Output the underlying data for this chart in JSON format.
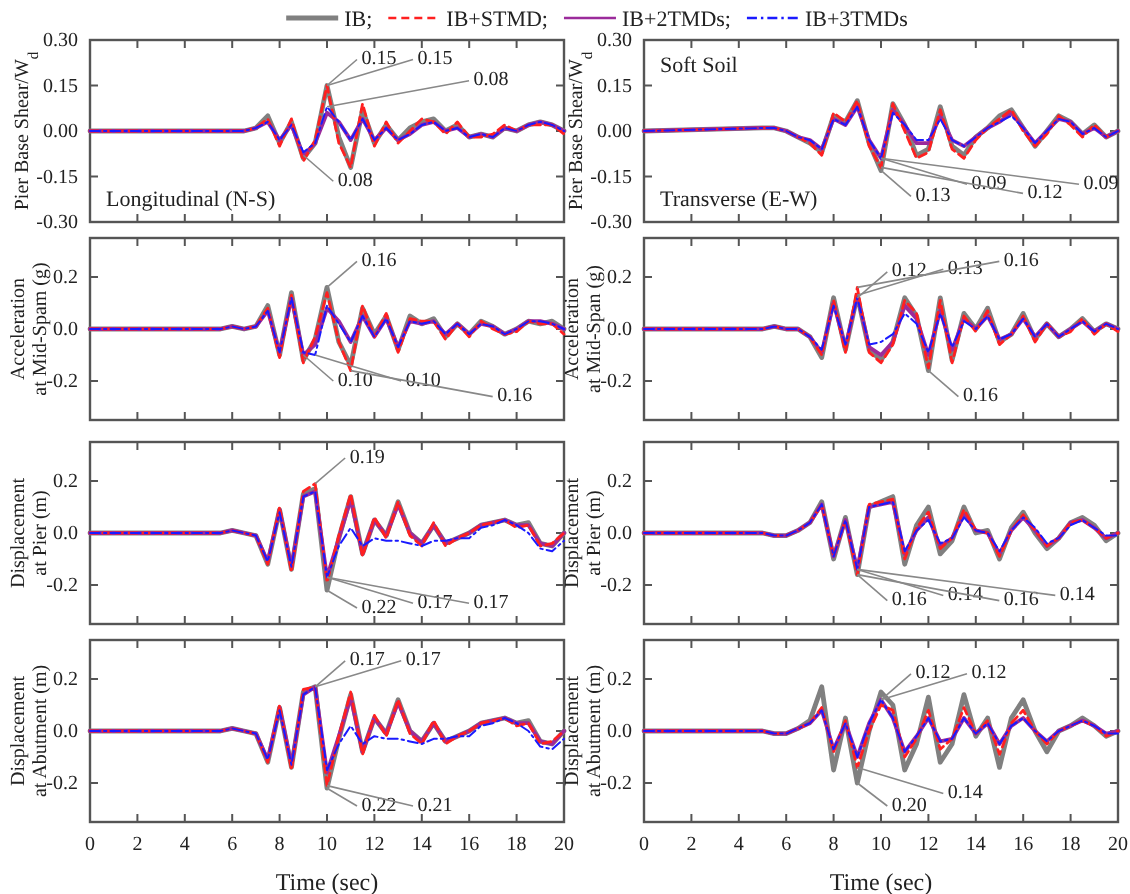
{
  "chart_data": [
    {
      "type": "line",
      "ylabel": "Pier Base Shear/W$_{d}$",
      "legend": "top",
      "tick_labels": "y",
      "xlim": [
        0,
        20
      ],
      "xticks": [
        0,
        2,
        4,
        6,
        8,
        10,
        12,
        14,
        16,
        18,
        20
      ],
      "ylim": [
        -0.3,
        0.3
      ],
      "yticks": [
        {
          "value": -0.3,
          "label": "-0.30"
        },
        {
          "value": -0.15,
          "label": "-0.15"
        },
        {
          "value": 0,
          "label": "0.00"
        },
        {
          "value": 0.15,
          "label": "0.15"
        },
        {
          "value": 0.3,
          "label": "0.30"
        }
      ],
      "x": [
        0,
        5,
        5.5,
        6,
        6.5,
        7,
        7.5,
        8,
        8.5,
        9,
        9.5,
        10,
        10.5,
        11,
        11.5,
        12,
        12.5,
        13,
        13.5,
        14,
        14.5,
        15,
        15.5,
        16,
        16.5,
        17,
        17.5,
        18,
        18.5,
        19,
        19.5,
        20
      ],
      "annotations": [
        "Longitudinal (N-S)",
        {
          "text": "0.15",
          "x": 10,
          "y": 0.15
        },
        {
          "text": "0.15",
          "x": 10,
          "y": 0.15
        },
        {
          "text": "0.08",
          "x": 9,
          "y": -0.08
        },
        {
          "text": "0.08",
          "x": 10,
          "y": 0.08
        }
      ],
      "series": [
        {
          "name": "IB;",
          "color": "#808080",
          "line_style": "solid",
          "values": [
            0,
            0,
            0,
            0,
            0,
            0.01,
            0.05,
            -0.04,
            0.03,
            -0.09,
            -0.04,
            0.15,
            -0.02,
            -0.12,
            0.07,
            -0.04,
            0.02,
            -0.03,
            0.01,
            0.03,
            0.04,
            0.0,
            0.02,
            -0.02,
            -0.01,
            -0.02,
            0.01,
            0.0,
            0.02,
            0.03,
            0.02,
            0.0
          ]
        },
        {
          "name": "IB+STMD;",
          "color": "#ff2020",
          "line_style": "dashed",
          "values": [
            0,
            0,
            0,
            0,
            0,
            0.01,
            0.04,
            -0.05,
            0.04,
            -0.1,
            -0.03,
            0.15,
            -0.04,
            -0.12,
            0.09,
            -0.05,
            0.03,
            -0.04,
            0.0,
            0.04,
            0.03,
            -0.01,
            0.03,
            -0.02,
            -0.02,
            -0.01,
            0.02,
            0.0,
            0.02,
            0.02,
            0.02,
            -0.01
          ]
        },
        {
          "name": "IB+2TMDs;",
          "color": "#9b2b9b",
          "line_style": "solid",
          "values": [
            0,
            0,
            0,
            0,
            0,
            0.01,
            0.03,
            -0.03,
            0.02,
            -0.08,
            -0.04,
            0.06,
            0.03,
            -0.03,
            0.04,
            -0.03,
            0.01,
            -0.03,
            -0.01,
            0.02,
            0.03,
            0.0,
            0.01,
            -0.02,
            -0.01,
            -0.02,
            0.01,
            0.0,
            0.02,
            0.03,
            0.02,
            0.0
          ]
        },
        {
          "name": "IB+3TMDs",
          "color": "#1a1aff",
          "line_style": "dotted",
          "values": [
            0,
            0,
            0,
            0,
            0,
            0.01,
            0.03,
            -0.03,
            0.02,
            -0.07,
            -0.04,
            0.08,
            0.03,
            -0.03,
            0.04,
            -0.03,
            0.01,
            -0.03,
            -0.01,
            0.02,
            0.03,
            0.0,
            0.01,
            -0.02,
            -0.01,
            -0.02,
            0.01,
            0.0,
            0.02,
            0.03,
            0.02,
            0.0
          ]
        }
      ]
    },
    {
      "type": "line",
      "ylabel": "Pier Base Shear/W$_{d}$",
      "tick_labels": "y",
      "xlim": [
        0,
        20
      ],
      "xticks": [
        0,
        2,
        4,
        6,
        8,
        10,
        12,
        14,
        16,
        18,
        20
      ],
      "ylim": [
        -0.3,
        0.3
      ],
      "yticks": [
        {
          "value": -0.3,
          "label": "-0.30"
        },
        {
          "value": -0.15,
          "label": "-0.15"
        },
        {
          "value": 0,
          "label": "0.00"
        },
        {
          "value": 0.15,
          "label": "0.15"
        },
        {
          "value": 0.3,
          "label": "0.30"
        }
      ],
      "x": [
        0,
        5,
        5.5,
        6,
        6.5,
        7,
        7.5,
        8,
        8.5,
        9,
        9.5,
        10,
        10.5,
        11,
        11.5,
        12,
        12.5,
        13,
        13.5,
        14,
        14.5,
        15,
        15.5,
        16,
        16.5,
        17,
        17.5,
        18,
        18.5,
        19,
        19.5,
        20
      ],
      "annotations": [
        "Soft Soil",
        "Transverse (E-W)",
        {
          "text": "0.13",
          "x": 10,
          "y": -0.13
        },
        {
          "text": "0.09",
          "x": 10,
          "y": -0.09
        },
        {
          "text": "0.12",
          "x": 10,
          "y": -0.12
        },
        {
          "text": "0.09",
          "x": 10,
          "y": -0.09
        }
      ],
      "series": [
        {
          "color": "#808080",
          "line_style": "solid",
          "values": [
            0,
            0.01,
            0.01,
            0.0,
            -0.02,
            -0.04,
            -0.07,
            0.05,
            0.03,
            0.1,
            -0.04,
            -0.13,
            0.09,
            0.02,
            -0.08,
            -0.06,
            0.08,
            -0.05,
            -0.08,
            -0.02,
            0.01,
            0.05,
            0.07,
            0.01,
            -0.05,
            0.0,
            0.05,
            0.03,
            -0.01,
            0.02,
            -0.02,
            0.0
          ]
        },
        {
          "color": "#ff2020",
          "line_style": "dashed",
          "values": [
            0,
            0.01,
            0.01,
            0.0,
            -0.02,
            -0.04,
            -0.08,
            0.06,
            0.03,
            0.1,
            -0.05,
            -0.12,
            0.09,
            0.0,
            -0.09,
            -0.07,
            0.07,
            -0.06,
            -0.09,
            -0.03,
            0.01,
            0.04,
            0.07,
            0.0,
            -0.05,
            -0.01,
            0.05,
            0.02,
            -0.02,
            0.02,
            -0.02,
            0.0
          ]
        },
        {
          "color": "#9b2b9b",
          "line_style": "solid",
          "values": [
            0,
            0.01,
            0.01,
            0.0,
            -0.02,
            -0.03,
            -0.06,
            0.04,
            0.02,
            0.08,
            -0.03,
            -0.09,
            0.07,
            0.02,
            -0.04,
            -0.04,
            0.05,
            -0.03,
            -0.05,
            -0.02,
            0.01,
            0.03,
            0.06,
            0.01,
            -0.04,
            0.0,
            0.04,
            0.03,
            -0.01,
            0.01,
            -0.02,
            0.0
          ]
        },
        {
          "color": "#1a1aff",
          "line_style": "dotted",
          "values": [
            0,
            0.01,
            0.01,
            0.0,
            -0.02,
            -0.03,
            -0.06,
            0.04,
            0.02,
            0.08,
            -0.03,
            -0.09,
            0.06,
            0.02,
            -0.03,
            -0.03,
            0.04,
            -0.03,
            -0.05,
            -0.02,
            0.01,
            0.03,
            0.05,
            0.01,
            -0.04,
            0.0,
            0.04,
            0.03,
            -0.01,
            0.01,
            -0.02,
            0.0
          ]
        }
      ]
    },
    {
      "type": "line",
      "ylabel": "Acceleration\nat Mid-Spam (g)",
      "tick_labels": "y",
      "xlim": [
        0,
        20
      ],
      "xticks": [
        0,
        2,
        4,
        6,
        8,
        10,
        12,
        14,
        16,
        18,
        20
      ],
      "ylim": [
        -0.35,
        0.35
      ],
      "yticks": [
        {
          "value": -0.2,
          "label": "-0.2"
        },
        {
          "value": 0,
          "label": "0.0"
        },
        {
          "value": 0.2,
          "label": "0.2"
        }
      ],
      "x": [
        0,
        5,
        5.5,
        6,
        6.5,
        7,
        7.5,
        8,
        8.5,
        9,
        9.5,
        10,
        10.5,
        11,
        11.5,
        12,
        12.5,
        13,
        13.5,
        14,
        14.5,
        15,
        15.5,
        16,
        16.5,
        17,
        17.5,
        18,
        18.5,
        19,
        19.5,
        20
      ],
      "annotations": [
        {
          "text": "0.16",
          "x": 10,
          "y": 0.16
        },
        {
          "text": "0.10",
          "x": 9,
          "y": -0.1
        },
        {
          "text": "0.10",
          "x": 9.5,
          "y": -0.1
        },
        {
          "text": "0.16",
          "x": 11,
          "y": -0.16
        }
      ],
      "series": [
        {
          "color": "#808080",
          "line_style": "solid",
          "values": [
            0,
            0,
            0,
            0.01,
            0,
            0.01,
            0.09,
            -0.1,
            0.14,
            -0.12,
            -0.04,
            0.16,
            -0.05,
            -0.14,
            0.08,
            -0.02,
            0.05,
            -0.08,
            0.05,
            0.02,
            0.04,
            -0.03,
            0.02,
            -0.02,
            0.03,
            0.01,
            -0.02,
            0.0,
            0.03,
            0.02,
            0.03,
            0.0
          ]
        },
        {
          "color": "#ff2020",
          "line_style": "dashed",
          "values": [
            0,
            0,
            0,
            0.01,
            0,
            0.01,
            0.08,
            -0.11,
            0.13,
            -0.13,
            -0.03,
            0.14,
            -0.05,
            -0.16,
            0.09,
            -0.03,
            0.06,
            -0.09,
            0.04,
            0.03,
            0.03,
            -0.04,
            0.02,
            -0.03,
            0.03,
            0.0,
            -0.02,
            -0.01,
            0.03,
            0.02,
            0.02,
            -0.02
          ]
        },
        {
          "color": "#9b2b9b",
          "line_style": "solid",
          "values": [
            0,
            0,
            0,
            0.01,
            0,
            0.01,
            0.07,
            -0.09,
            0.12,
            -0.1,
            -0.06,
            0.08,
            0.03,
            -0.05,
            0.05,
            -0.03,
            0.04,
            -0.07,
            0.03,
            0.02,
            0.03,
            -0.02,
            0.02,
            -0.02,
            0.02,
            0.01,
            -0.02,
            0.0,
            0.03,
            0.03,
            0.02,
            0.0
          ]
        },
        {
          "color": "#1a1aff",
          "line_style": "dotted",
          "values": [
            0,
            0,
            0,
            0.01,
            0,
            0.01,
            0.07,
            -0.09,
            0.12,
            -0.09,
            -0.1,
            0.09,
            0.02,
            -0.05,
            0.05,
            -0.03,
            0.04,
            -0.07,
            0.03,
            0.02,
            0.03,
            -0.02,
            0.02,
            -0.02,
            0.02,
            0.01,
            -0.02,
            0.0,
            0.03,
            0.03,
            0.02,
            0.0
          ]
        }
      ]
    },
    {
      "type": "line",
      "ylabel": "Acceleration\nat Mid-Span  (g)",
      "tick_labels": "y",
      "xlim": [
        0,
        20
      ],
      "xticks": [
        0,
        2,
        4,
        6,
        8,
        10,
        12,
        14,
        16,
        18,
        20
      ],
      "ylim": [
        -0.35,
        0.35
      ],
      "yticks": [
        {
          "value": -0.2,
          "label": "-0.2"
        },
        {
          "value": 0,
          "label": "0.0"
        },
        {
          "value": 0.2,
          "label": "0.2"
        }
      ],
      "x": [
        0,
        5,
        5.5,
        6,
        6.5,
        7,
        7.5,
        8,
        8.5,
        9,
        9.5,
        10,
        10.5,
        11,
        11.5,
        12,
        12.5,
        13,
        13.5,
        14,
        14.5,
        15,
        15.5,
        16,
        16.5,
        17,
        17.5,
        18,
        18.5,
        19,
        19.5,
        20
      ],
      "annotations": [
        {
          "text": "0.12",
          "x": 9,
          "y": 0.12
        },
        {
          "text": "0.13",
          "x": 9,
          "y": 0.13
        },
        {
          "text": "0.16",
          "x": 12,
          "y": -0.16
        },
        {
          "text": "0.16",
          "x": 9,
          "y": 0.16
        }
      ],
      "series": [
        {
          "color": "#808080",
          "line_style": "solid",
          "values": [
            0,
            0.0,
            0.01,
            0.0,
            0.0,
            -0.03,
            -0.11,
            0.12,
            -0.08,
            0.13,
            -0.08,
            -0.12,
            -0.05,
            0.12,
            0.05,
            -0.16,
            0.12,
            -0.12,
            0.06,
            0.0,
            0.08,
            -0.05,
            -0.02,
            0.06,
            -0.04,
            0.02,
            -0.03,
            0.0,
            0.04,
            -0.01,
            0.02,
            0.0
          ]
        },
        {
          "color": "#ff2020",
          "line_style": "dashed",
          "values": [
            0,
            0.0,
            0.01,
            0.0,
            0.0,
            -0.03,
            -0.1,
            0.11,
            -0.09,
            0.16,
            -0.09,
            -0.13,
            -0.06,
            0.11,
            0.06,
            -0.15,
            0.11,
            -0.13,
            0.05,
            -0.01,
            0.07,
            -0.06,
            -0.02,
            0.05,
            -0.05,
            0.02,
            -0.03,
            -0.01,
            0.04,
            -0.02,
            0.02,
            -0.01
          ]
        },
        {
          "color": "#9b2b9b",
          "line_style": "solid",
          "values": [
            0,
            0.0,
            0.01,
            0.0,
            0.0,
            -0.03,
            -0.09,
            0.1,
            -0.07,
            0.13,
            -0.07,
            -0.1,
            -0.05,
            0.09,
            0.04,
            -0.1,
            0.07,
            -0.08,
            0.04,
            0.0,
            0.05,
            -0.04,
            -0.02,
            0.04,
            -0.03,
            0.02,
            -0.03,
            0.0,
            0.03,
            -0.01,
            0.02,
            0.0
          ]
        },
        {
          "color": "#1a1aff",
          "line_style": "dotted",
          "values": [
            0,
            0.0,
            0.01,
            0.0,
            0.0,
            -0.03,
            -0.08,
            0.09,
            -0.06,
            0.12,
            -0.06,
            -0.05,
            -0.02,
            0.06,
            0.02,
            -0.09,
            0.06,
            -0.07,
            0.03,
            0.0,
            0.05,
            -0.04,
            -0.02,
            0.04,
            -0.03,
            0.02,
            -0.03,
            0.0,
            0.03,
            -0.01,
            0.02,
            0.0
          ]
        }
      ]
    },
    {
      "type": "line",
      "ylabel": "Displacement\nat Pier (m)",
      "tick_labels": "y",
      "xlim": [
        0,
        20
      ],
      "xticks": [
        0,
        2,
        4,
        6,
        8,
        10,
        12,
        14,
        16,
        18,
        20
      ],
      "ylim": [
        -0.35,
        0.35
      ],
      "yticks": [
        {
          "value": -0.2,
          "label": "-0.2"
        },
        {
          "value": 0,
          "label": "0.0"
        },
        {
          "value": 0.2,
          "label": "0.2"
        }
      ],
      "x": [
        0,
        5,
        5.5,
        6,
        6.5,
        7,
        7.5,
        8,
        8.5,
        9,
        9.5,
        10,
        10.5,
        11,
        11.5,
        12,
        12.5,
        13,
        13.5,
        14,
        14.5,
        15,
        15.5,
        16,
        16.5,
        17,
        17.5,
        18,
        18.5,
        19,
        19.5,
        20
      ],
      "annotations": [
        {
          "text": "0.19",
          "x": 9.5,
          "y": 0.19
        },
        {
          "text": "0.22",
          "x": 10,
          "y": -0.22
        },
        {
          "text": "0.17",
          "x": 10,
          "y": -0.17
        },
        {
          "text": "0.17",
          "x": 10,
          "y": -0.17
        }
      ],
      "series": [
        {
          "color": "#808080",
          "line_style": "solid",
          "values": [
            0,
            0,
            0,
            0.01,
            0.0,
            -0.01,
            -0.12,
            0.09,
            -0.14,
            0.15,
            0.17,
            -0.22,
            -0.02,
            0.14,
            -0.08,
            0.05,
            -0.01,
            0.12,
            0.0,
            -0.04,
            0.03,
            -0.04,
            -0.02,
            0.0,
            0.03,
            0.04,
            0.05,
            0.03,
            0.04,
            -0.04,
            -0.05,
            0.0
          ]
        },
        {
          "color": "#ff2020",
          "line_style": "dashed",
          "values": [
            0,
            0,
            0,
            0.01,
            0.0,
            -0.01,
            -0.12,
            0.1,
            -0.15,
            0.16,
            0.19,
            -0.19,
            -0.01,
            0.15,
            -0.09,
            0.06,
            -0.02,
            0.12,
            -0.01,
            -0.05,
            0.04,
            -0.05,
            -0.02,
            0.0,
            0.03,
            0.04,
            0.05,
            0.02,
            0.03,
            -0.05,
            -0.04,
            0.0
          ]
        },
        {
          "color": "#9b2b9b",
          "line_style": "solid",
          "values": [
            0,
            0,
            0,
            0.01,
            0.0,
            -0.01,
            -0.11,
            0.09,
            -0.13,
            0.14,
            0.16,
            -0.17,
            -0.02,
            0.13,
            -0.08,
            0.05,
            -0.01,
            0.11,
            0.0,
            -0.04,
            0.03,
            -0.04,
            -0.02,
            0.0,
            0.03,
            0.04,
            0.05,
            0.03,
            0.03,
            -0.04,
            -0.05,
            0.0
          ]
        },
        {
          "color": "#1a1aff",
          "line_style": "dotted",
          "values": [
            0,
            0,
            0,
            0.01,
            0.0,
            -0.01,
            -0.11,
            0.08,
            -0.13,
            0.14,
            0.16,
            -0.17,
            -0.05,
            0.02,
            -0.05,
            -0.02,
            -0.03,
            -0.03,
            -0.04,
            -0.05,
            -0.03,
            -0.03,
            -0.02,
            -0.02,
            0.02,
            0.03,
            0.05,
            0.03,
            0.0,
            -0.06,
            -0.07,
            -0.03
          ]
        }
      ]
    },
    {
      "type": "line",
      "ylabel": "Displacement\nat Pier (m)",
      "tick_labels": "y",
      "xlim": [
        0,
        20
      ],
      "xticks": [
        0,
        2,
        4,
        6,
        8,
        10,
        12,
        14,
        16,
        18,
        20
      ],
      "ylim": [
        -0.35,
        0.35
      ],
      "yticks": [
        {
          "value": -0.2,
          "label": "-0.2"
        },
        {
          "value": 0,
          "label": "0.0"
        },
        {
          "value": 0.2,
          "label": "0.2"
        }
      ],
      "x": [
        0,
        5,
        5.5,
        6,
        6.5,
        7,
        7.5,
        8,
        8.5,
        9,
        9.5,
        10,
        10.5,
        11,
        11.5,
        12,
        12.5,
        13,
        13.5,
        14,
        14.5,
        15,
        15.5,
        16,
        16.5,
        17,
        17.5,
        18,
        18.5,
        19,
        19.5,
        20
      ],
      "annotations": [
        {
          "text": "0.16",
          "x": 9,
          "y": -0.16
        },
        {
          "text": "0.14",
          "x": 9,
          "y": -0.14
        },
        {
          "text": "0.16",
          "x": 9,
          "y": -0.16
        },
        {
          "text": "0.14",
          "x": 9,
          "y": -0.14
        }
      ],
      "series": [
        {
          "color": "#808080",
          "line_style": "solid",
          "values": [
            0,
            0.0,
            -0.01,
            -0.01,
            0.01,
            0.04,
            0.12,
            -0.1,
            0.06,
            -0.16,
            0.1,
            0.12,
            0.14,
            -0.12,
            0.03,
            0.1,
            -0.08,
            -0.03,
            0.1,
            0.0,
            0.01,
            -0.1,
            0.02,
            0.08,
            0.0,
            -0.06,
            -0.02,
            0.04,
            0.06,
            0.03,
            -0.03,
            0.0
          ]
        },
        {
          "color": "#ff2020",
          "line_style": "dashed",
          "values": [
            0,
            0.0,
            -0.01,
            -0.01,
            0.01,
            0.04,
            0.11,
            -0.09,
            0.05,
            -0.16,
            0.11,
            0.12,
            0.13,
            -0.1,
            0.02,
            0.08,
            -0.06,
            -0.02,
            0.09,
            0.01,
            0.0,
            -0.09,
            0.01,
            0.07,
            0.01,
            -0.05,
            -0.02,
            0.04,
            0.05,
            0.02,
            -0.02,
            0.0
          ]
        },
        {
          "color": "#9b2b9b",
          "line_style": "solid",
          "values": [
            0,
            0.0,
            -0.01,
            -0.01,
            0.01,
            0.04,
            0.11,
            -0.09,
            0.05,
            -0.14,
            0.1,
            0.11,
            0.12,
            -0.08,
            0.01,
            0.06,
            -0.05,
            -0.02,
            0.07,
            0.01,
            0.0,
            -0.08,
            0.01,
            0.06,
            0.01,
            -0.05,
            -0.02,
            0.04,
            0.05,
            0.02,
            -0.02,
            0.0
          ]
        },
        {
          "color": "#1a1aff",
          "line_style": "dotted",
          "values": [
            0,
            0.0,
            -0.01,
            -0.01,
            0.01,
            0.04,
            0.11,
            -0.09,
            0.05,
            -0.14,
            0.1,
            0.11,
            0.12,
            -0.07,
            0.01,
            0.05,
            -0.04,
            -0.02,
            0.06,
            0.01,
            0.0,
            -0.07,
            0.01,
            0.06,
            0.02,
            -0.04,
            -0.02,
            0.03,
            0.05,
            0.02,
            -0.01,
            -0.01
          ]
        }
      ]
    },
    {
      "type": "line",
      "ylabel": "Displacement\nat Abutment (m)",
      "xlabel": "Time (sec)",
      "xlim": [
        0,
        20
      ],
      "xticks": [
        0,
        2,
        4,
        6,
        8,
        10,
        12,
        14,
        16,
        18,
        20
      ],
      "ylim": [
        -0.35,
        0.35
      ],
      "yticks": [
        {
          "value": -0.2,
          "label": "-0.2"
        },
        {
          "value": 0,
          "label": "0.0"
        },
        {
          "value": 0.2,
          "label": "0.2"
        }
      ],
      "x": [
        0,
        5,
        5.5,
        6,
        6.5,
        7,
        7.5,
        8,
        8.5,
        9,
        9.5,
        10,
        10.5,
        11,
        11.5,
        12,
        12.5,
        13,
        13.5,
        14,
        14.5,
        15,
        15.5,
        16,
        16.5,
        17,
        17.5,
        18,
        18.5,
        19,
        19.5,
        20
      ],
      "annotations": [
        {
          "text": "0.17",
          "x": 9.5,
          "y": 0.17
        },
        {
          "text": "0.17",
          "x": 9.5,
          "y": 0.17
        },
        {
          "text": "0.22",
          "x": 10,
          "y": -0.22
        },
        {
          "text": "0.21",
          "x": 10,
          "y": -0.21
        }
      ],
      "series": [
        {
          "color": "#808080",
          "line_style": "solid",
          "values": [
            0,
            0,
            0,
            0.01,
            0.0,
            -0.01,
            -0.12,
            0.09,
            -0.14,
            0.15,
            0.17,
            -0.22,
            -0.03,
            0.14,
            -0.08,
            0.05,
            -0.01,
            0.12,
            0.0,
            -0.04,
            0.03,
            -0.04,
            -0.02,
            0.0,
            0.03,
            0.04,
            0.05,
            0.03,
            0.04,
            -0.04,
            -0.05,
            0.0
          ]
        },
        {
          "color": "#ff2020",
          "line_style": "dashed",
          "values": [
            0,
            0,
            0,
            0.01,
            0.0,
            -0.01,
            -0.12,
            0.1,
            -0.15,
            0.16,
            0.17,
            -0.21,
            -0.02,
            0.15,
            -0.09,
            0.06,
            -0.02,
            0.12,
            -0.01,
            -0.05,
            0.04,
            -0.05,
            -0.02,
            0.0,
            0.03,
            0.04,
            0.05,
            0.02,
            0.03,
            -0.05,
            -0.04,
            0.0
          ]
        },
        {
          "color": "#9b2b9b",
          "line_style": "solid",
          "values": [
            0,
            0,
            0,
            0.01,
            0.0,
            -0.01,
            -0.11,
            0.09,
            -0.13,
            0.14,
            0.17,
            -0.16,
            -0.02,
            0.13,
            -0.08,
            0.05,
            -0.01,
            0.11,
            0.0,
            -0.04,
            0.03,
            -0.04,
            -0.02,
            0.0,
            0.03,
            0.04,
            0.05,
            0.03,
            0.03,
            -0.04,
            -0.05,
            0.0
          ]
        },
        {
          "color": "#1a1aff",
          "line_style": "dotted",
          "values": [
            0,
            0,
            0,
            0.01,
            0.0,
            -0.01,
            -0.11,
            0.08,
            -0.13,
            0.14,
            0.17,
            -0.15,
            -0.05,
            0.02,
            -0.05,
            -0.02,
            -0.03,
            -0.03,
            -0.04,
            -0.05,
            -0.03,
            -0.03,
            -0.02,
            -0.02,
            0.02,
            0.03,
            0.05,
            0.03,
            0.0,
            -0.06,
            -0.07,
            -0.03
          ]
        }
      ]
    },
    {
      "type": "line",
      "ylabel": "Displacement\nat Abutment (m)",
      "xlabel": "Time (sec)",
      "xlim": [
        0,
        20
      ],
      "xticks": [
        0,
        2,
        4,
        6,
        8,
        10,
        12,
        14,
        16,
        18,
        20
      ],
      "ylim": [
        -0.35,
        0.35
      ],
      "yticks": [
        {
          "value": -0.2,
          "label": "-0.2"
        },
        {
          "value": 0,
          "label": "0.0"
        },
        {
          "value": 0.2,
          "label": "0.2"
        }
      ],
      "x": [
        0,
        5,
        5.5,
        6,
        6.5,
        7,
        7.5,
        8,
        8.5,
        9,
        9.5,
        10,
        10.5,
        11,
        11.5,
        12,
        12.5,
        13,
        13.5,
        14,
        14.5,
        15,
        15.5,
        16,
        16.5,
        17,
        17.5,
        18,
        18.5,
        19,
        19.5,
        20
      ],
      "annotations": [
        {
          "text": "0.12",
          "x": 10,
          "y": 0.12
        },
        {
          "text": "0.12",
          "x": 10,
          "y": 0.12
        },
        {
          "text": "0.20",
          "x": 9,
          "y": -0.2
        },
        {
          "text": "0.14",
          "x": 9,
          "y": -0.14
        }
      ],
      "series": [
        {
          "color": "#808080",
          "line_style": "solid",
          "values": [
            0,
            0.0,
            -0.01,
            -0.01,
            0.01,
            0.04,
            0.17,
            -0.15,
            0.05,
            -0.2,
            0.0,
            0.15,
            0.1,
            -0.15,
            -0.05,
            0.13,
            -0.12,
            -0.05,
            0.14,
            -0.02,
            0.05,
            -0.14,
            0.05,
            0.12,
            0.0,
            -0.08,
            0.0,
            0.02,
            0.05,
            0.02,
            -0.02,
            0.0
          ]
        },
        {
          "color": "#ff2020",
          "line_style": "dashed",
          "values": [
            0,
            0.0,
            -0.01,
            -0.01,
            0.01,
            0.03,
            0.09,
            -0.08,
            0.04,
            -0.14,
            0.0,
            0.1,
            0.08,
            -0.1,
            -0.03,
            0.08,
            -0.07,
            -0.03,
            0.09,
            -0.01,
            0.04,
            -0.09,
            0.03,
            0.08,
            0.0,
            -0.05,
            0.0,
            0.02,
            0.04,
            0.02,
            -0.02,
            0.0
          ]
        },
        {
          "color": "#9b2b9b",
          "line_style": "solid",
          "values": [
            0,
            0.0,
            -0.01,
            -0.01,
            0.01,
            0.03,
            0.08,
            -0.07,
            0.03,
            -0.1,
            0.03,
            0.12,
            0.05,
            -0.08,
            -0.02,
            0.05,
            -0.04,
            -0.03,
            0.05,
            -0.01,
            0.03,
            -0.05,
            0.02,
            0.05,
            0.0,
            -0.04,
            0.0,
            0.02,
            0.04,
            0.02,
            -0.01,
            0.0
          ]
        },
        {
          "color": "#1a1aff",
          "line_style": "dotted",
          "values": [
            0,
            0.0,
            -0.01,
            -0.01,
            0.01,
            0.03,
            0.08,
            -0.07,
            0.03,
            -0.1,
            0.03,
            0.12,
            0.05,
            -0.08,
            -0.02,
            0.05,
            -0.04,
            -0.03,
            0.05,
            -0.01,
            0.03,
            -0.05,
            0.02,
            0.05,
            0.0,
            -0.04,
            0.0,
            0.02,
            0.04,
            0.02,
            -0.01,
            -0.01
          ]
        }
      ]
    }
  ]
}
